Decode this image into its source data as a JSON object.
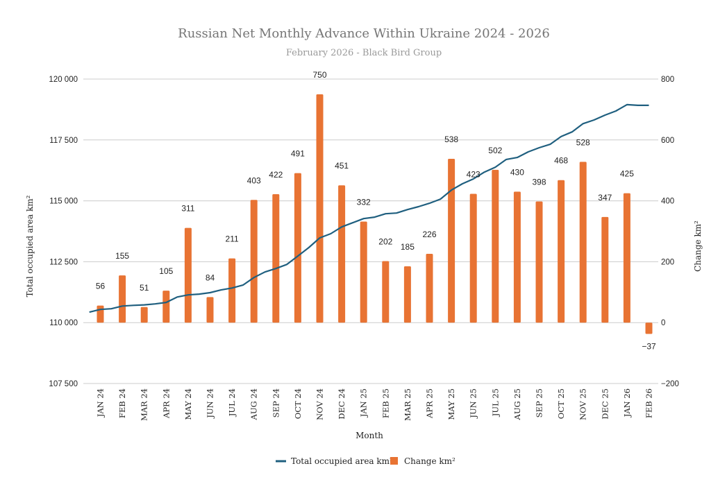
{
  "chart_data": {
    "type": "bar+line",
    "title": "Russian Net Monthly Advance Within Ukraine 2024 - 2026",
    "subtitle": "February 2026 - Black Bird Group",
    "xlabel": "Month",
    "ylabel_left": "Total occupied area km²",
    "ylabel_right": "Change km²",
    "categories": [
      "JAN 24",
      "FEB 24",
      "MAR 24",
      "APR 24",
      "MAY 24",
      "JUN 24",
      "JUL 24",
      "AUG 24",
      "SEP 24",
      "OCT 24",
      "NOV 24",
      "DEC 24",
      "JAN 25",
      "FEB 25",
      "MAR 25",
      "APR 25",
      "MAY 25",
      "JUN 25",
      "JUL 25",
      "AUG 25",
      "SEP 25",
      "OCT 25",
      "NOV 25",
      "DEC 25",
      "JAN 26",
      "FEB 26"
    ],
    "left_axis": {
      "min": 107500,
      "max": 120000,
      "ticks": [
        "107 500",
        "110 000",
        "112 500",
        "115 000",
        "117 500",
        "120 000"
      ]
    },
    "right_axis": {
      "min": -200,
      "max": 800,
      "ticks": [
        "−200",
        "0",
        "200",
        "400",
        "600",
        "800"
      ]
    },
    "grid": true,
    "legend_position": "bottom",
    "series": [
      {
        "name": "Total occupied area km²",
        "type": "line",
        "axis": "left",
        "color": "#1f5f7f",
        "x": [
          -0.5,
          0,
          0.5,
          1,
          1.5,
          2,
          2.5,
          3,
          3.5,
          4,
          4.5,
          5,
          5.5,
          6,
          6.5,
          7,
          7.5,
          8,
          8.5,
          9,
          9.5,
          10,
          10.5,
          11,
          11.5,
          12,
          12.5,
          13,
          13.5,
          14,
          14.5,
          15,
          15.5,
          16,
          16.5,
          17,
          17.5,
          18,
          18.5,
          19,
          19.5,
          20,
          20.5,
          21,
          21.5,
          22,
          22.5,
          23,
          23.5,
          24,
          24.5,
          25
        ],
        "values": [
          110430,
          110540,
          110570,
          110680,
          110710,
          110730,
          110770,
          110830,
          111050,
          111140,
          111170,
          111230,
          111340,
          111420,
          111540,
          111850,
          112080,
          112220,
          112390,
          112730,
          113080,
          113480,
          113650,
          113930,
          114100,
          114270,
          114330,
          114470,
          114500,
          114640,
          114760,
          114900,
          115070,
          115440,
          115700,
          115900,
          116180,
          116380,
          116700,
          116780,
          117010,
          117180,
          117320,
          117640,
          117830,
          118170,
          118320,
          118520,
          118690,
          118950,
          118920,
          118920
        ]
      },
      {
        "name": "Change km²",
        "type": "bar",
        "axis": "right",
        "color": "#e87333",
        "values": [
          56,
          155,
          51,
          105,
          311,
          84,
          211,
          403,
          422,
          491,
          750,
          451,
          332,
          202,
          185,
          226,
          538,
          423,
          502,
          430,
          398,
          468,
          528,
          347,
          425,
          -37
        ],
        "labels": [
          "56",
          "155",
          "51",
          "105",
          "311",
          "84",
          "211",
          "403",
          "422",
          "491",
          "750",
          "451",
          "332",
          "202",
          "185",
          "226",
          "538",
          "423",
          "502",
          "430",
          "398",
          "468",
          "528",
          "347",
          "425",
          "−37"
        ]
      }
    ]
  }
}
